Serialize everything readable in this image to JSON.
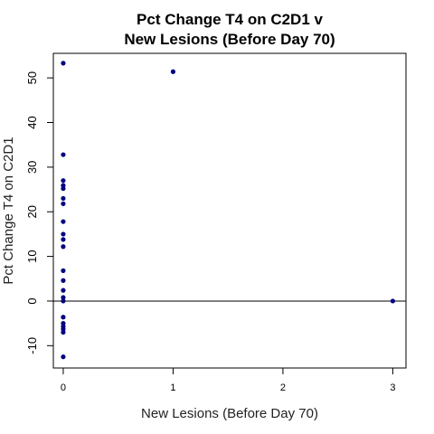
{
  "chart_data": {
    "type": "scatter",
    "title_lines": [
      "Pct Change T4 on C2D1 v",
      "New Lesions (Before Day 70)"
    ],
    "xlabel": "New Lesions (Before Day 70)",
    "ylabel": "Pct Change T4 on C2D1",
    "xlim": [
      -0.09,
      3.12
    ],
    "ylim": [
      -15.0,
      55.5
    ],
    "x_ticks": [
      0,
      1,
      2,
      3
    ],
    "x_tick_labels": [
      "0",
      "1",
      "2",
      "3"
    ],
    "y_ticks": [
      -10,
      0,
      10,
      20,
      30,
      40,
      50
    ],
    "y_tick_labels": [
      "-10",
      "0",
      "10",
      "20",
      "30",
      "40",
      "50"
    ],
    "reference_line": {
      "axis": "y",
      "value": 0,
      "color": "#000000"
    },
    "grid": false,
    "point_color": "#000080",
    "points": [
      {
        "x": 0,
        "y": 53.3
      },
      {
        "x": 0,
        "y": 32.8
      },
      {
        "x": 0,
        "y": 27.0
      },
      {
        "x": 0,
        "y": 25.9
      },
      {
        "x": 0,
        "y": 25.2
      },
      {
        "x": 0,
        "y": 23.0
      },
      {
        "x": 0,
        "y": 21.8
      },
      {
        "x": 0,
        "y": 17.8
      },
      {
        "x": 0,
        "y": 15.0
      },
      {
        "x": 0,
        "y": 13.8
      },
      {
        "x": 0,
        "y": 12.2
      },
      {
        "x": 0,
        "y": 6.8
      },
      {
        "x": 0,
        "y": 4.6
      },
      {
        "x": 0,
        "y": 2.4
      },
      {
        "x": 0,
        "y": 0.8
      },
      {
        "x": 0,
        "y": 0.0
      },
      {
        "x": 0,
        "y": -3.6
      },
      {
        "x": 0,
        "y": -5.0
      },
      {
        "x": 0,
        "y": -5.7
      },
      {
        "x": 0,
        "y": -6.3
      },
      {
        "x": 0,
        "y": -7.0
      },
      {
        "x": 0,
        "y": -12.5
      },
      {
        "x": 1,
        "y": 51.4
      },
      {
        "x": 3,
        "y": 0.0
      }
    ]
  }
}
